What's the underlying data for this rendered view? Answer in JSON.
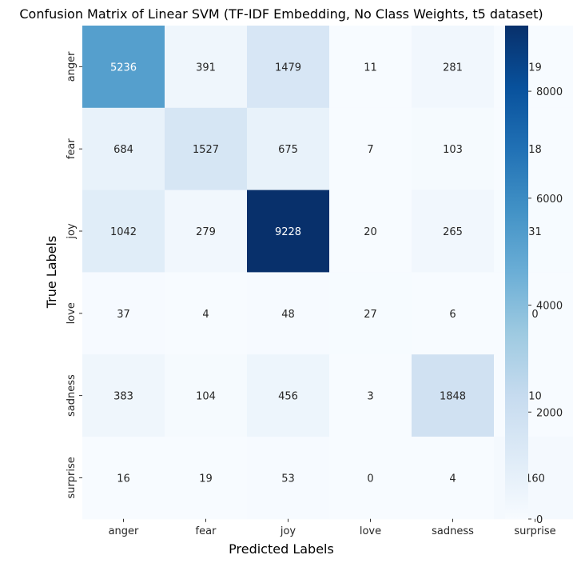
{
  "chart_data": {
    "type": "heatmap",
    "title": "Confusion Matrix of Linear SVM  (TF-IDF Embedding, No Class Weights, t5 dataset)",
    "xlabel": "Predicted Labels",
    "ylabel": "True Labels",
    "x_categories": [
      "anger",
      "fear",
      "joy",
      "love",
      "sadness",
      "surprise"
    ],
    "y_categories": [
      "anger",
      "fear",
      "joy",
      "love",
      "sadness",
      "surprise"
    ],
    "values": [
      [
        5236,
        391,
        1479,
        11,
        281,
        19
      ],
      [
        684,
        1527,
        675,
        7,
        103,
        18
      ],
      [
        1042,
        279,
        9228,
        20,
        265,
        31
      ],
      [
        37,
        4,
        48,
        27,
        6,
        0
      ],
      [
        383,
        104,
        456,
        3,
        1848,
        10
      ],
      [
        16,
        19,
        53,
        0,
        4,
        160
      ]
    ],
    "colormap": "Blues",
    "value_range": [
      0,
      9228
    ],
    "colorbar_ticks": [
      0,
      2000,
      4000,
      6000,
      8000
    ],
    "grid": false
  }
}
